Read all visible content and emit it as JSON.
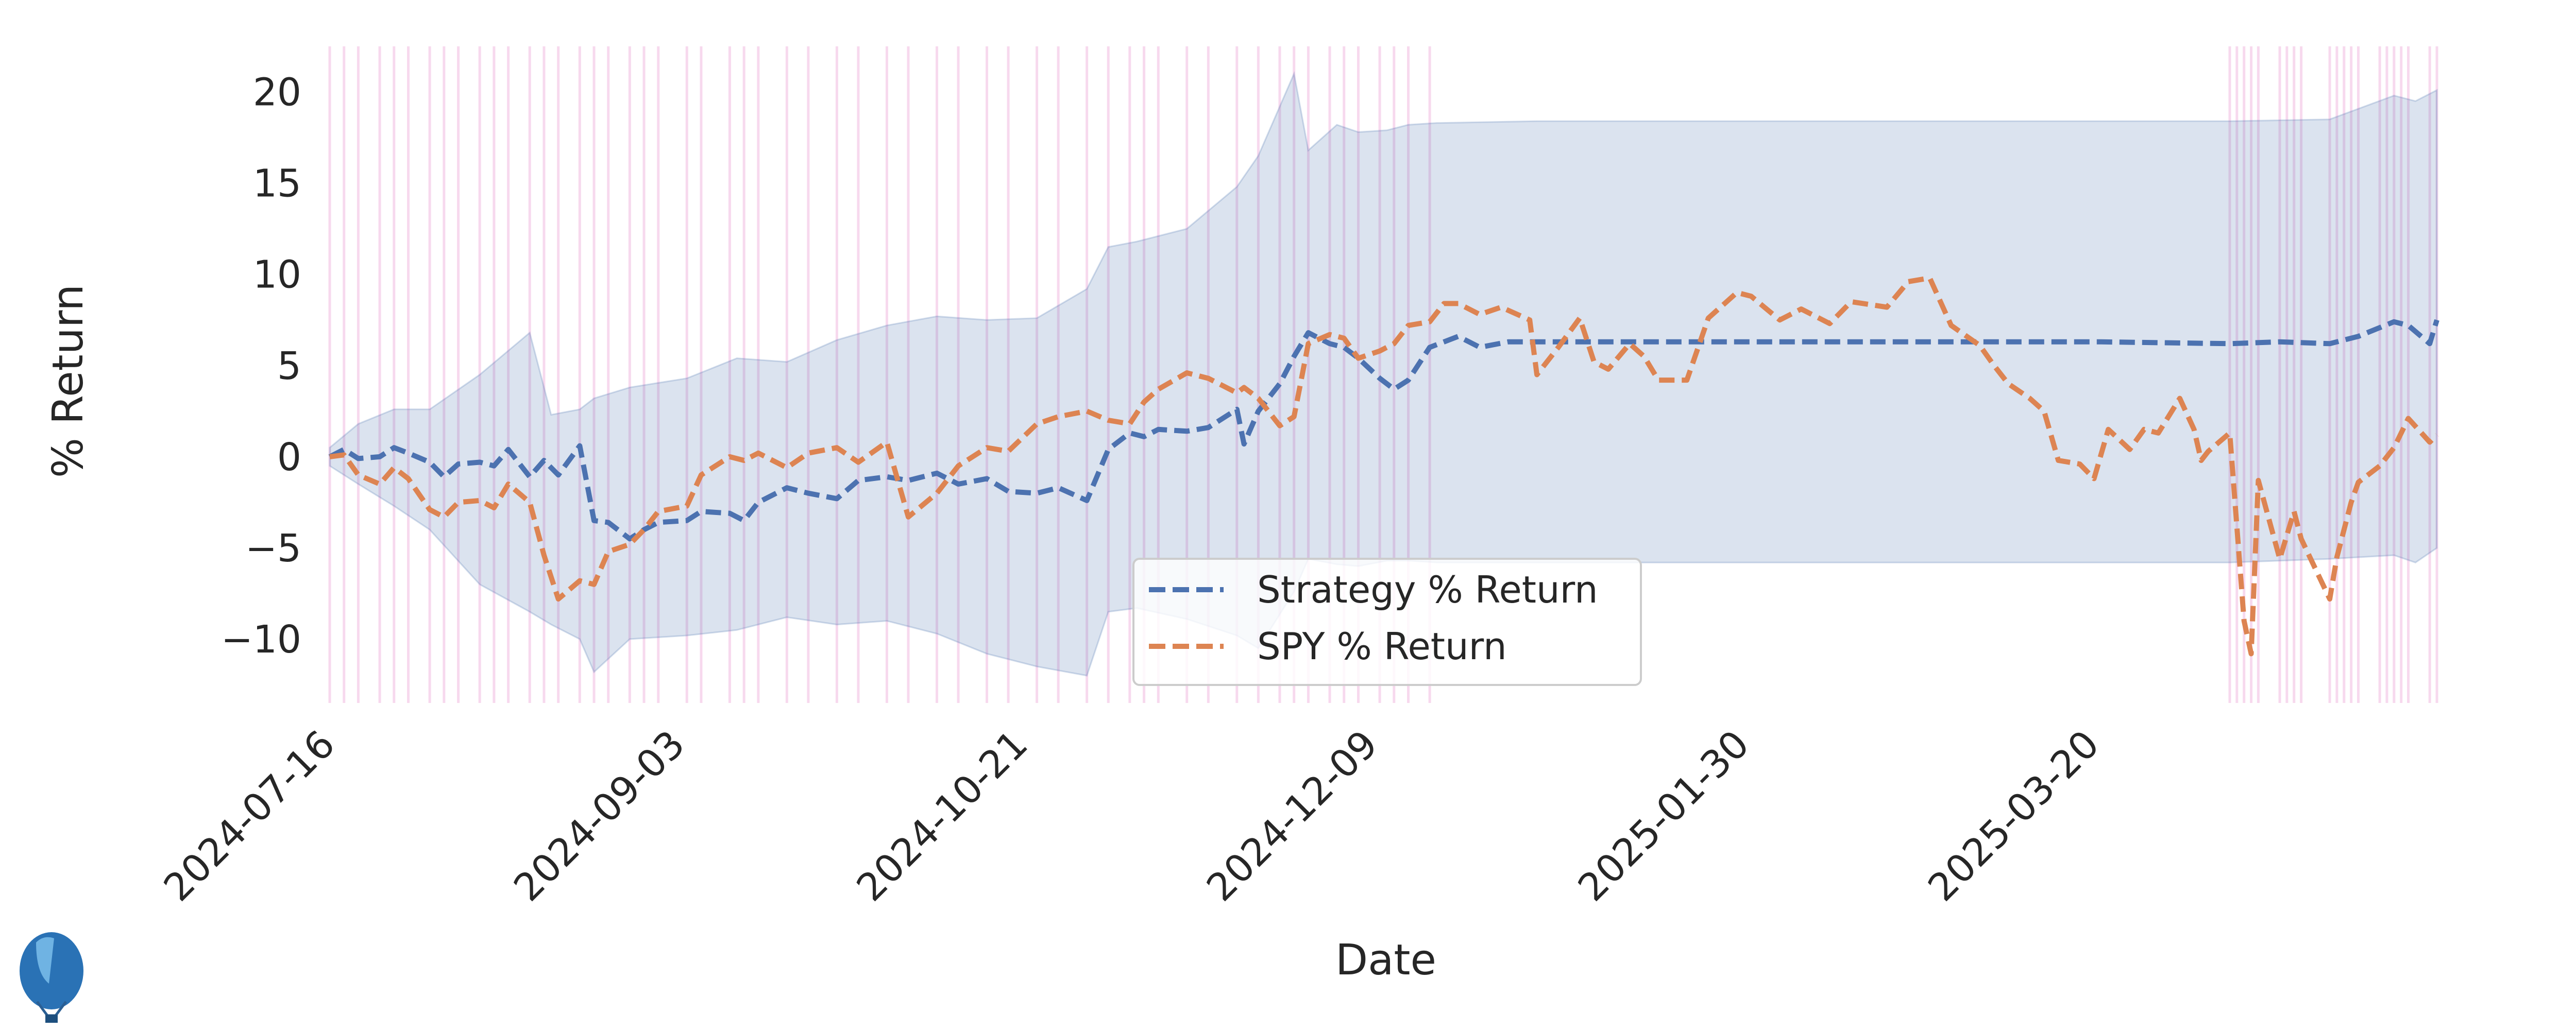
{
  "chart_data": {
    "type": "line",
    "title": "",
    "xlabel": "Date",
    "ylabel": "% Return",
    "x_ticks": [
      "2024-07-16",
      "2024-09-03",
      "2024-10-21",
      "2024-12-09",
      "2025-01-30",
      "2025-03-20"
    ],
    "y_ticks": [
      20,
      15,
      10,
      5,
      0,
      -5,
      -10
    ],
    "xlim": [
      "2024-07-15",
      "2025-05-06"
    ],
    "ylim": [
      -13.5,
      22.5
    ],
    "grid": false,
    "legend_position": "lower center",
    "legend": [
      "Strategy % Return",
      "SPY % Return"
    ],
    "colors": {
      "strategy": "#4c72b0",
      "spy": "#dd8452",
      "band": "#4c72b0",
      "vlines": "#e377c2"
    },
    "series": [
      {
        "name": "Strategy % Return",
        "points": [
          [
            "2024-07-15",
            0
          ],
          [
            "2024-07-17",
            0.4
          ],
          [
            "2024-07-19",
            -0.1
          ],
          [
            "2024-07-22",
            0
          ],
          [
            "2024-07-24",
            0.5
          ],
          [
            "2024-07-26",
            0.2
          ],
          [
            "2024-07-29",
            -0.3
          ],
          [
            "2024-07-31",
            -1.1
          ],
          [
            "2024-08-02",
            -0.4
          ],
          [
            "2024-08-05",
            -0.3
          ],
          [
            "2024-08-07",
            -0.5
          ],
          [
            "2024-08-09",
            0.4
          ],
          [
            "2024-08-12",
            -1.1
          ],
          [
            "2024-08-14",
            -0.2
          ],
          [
            "2024-08-16",
            -1
          ],
          [
            "2024-08-19",
            0.6
          ],
          [
            "2024-08-21",
            -3.5
          ],
          [
            "2024-08-23",
            -3.6
          ],
          [
            "2024-08-26",
            -4.5
          ],
          [
            "2024-08-28",
            -4
          ],
          [
            "2024-08-30",
            -3.6
          ],
          [
            "2024-09-03",
            -3.5
          ],
          [
            "2024-09-05",
            -3
          ],
          [
            "2024-09-09",
            -3.1
          ],
          [
            "2024-09-11",
            -3.5
          ],
          [
            "2024-09-13",
            -2.5
          ],
          [
            "2024-09-17",
            -1.7
          ],
          [
            "2024-09-20",
            -2
          ],
          [
            "2024-09-24",
            -2.3
          ],
          [
            "2024-09-27",
            -1.3
          ],
          [
            "2024-10-01",
            -1.1
          ],
          [
            "2024-10-04",
            -1.3
          ],
          [
            "2024-10-08",
            -0.9
          ],
          [
            "2024-10-11",
            -1.5
          ],
          [
            "2024-10-15",
            -1.2
          ],
          [
            "2024-10-18",
            -1.9
          ],
          [
            "2024-10-22",
            -2
          ],
          [
            "2024-10-25",
            -1.7
          ],
          [
            "2024-10-29",
            -2.4
          ],
          [
            "2024-11-01",
            0.4
          ],
          [
            "2024-11-04",
            1.3
          ],
          [
            "2024-11-06",
            1.1
          ],
          [
            "2024-11-08",
            1.5
          ],
          [
            "2024-11-12",
            1.4
          ],
          [
            "2024-11-15",
            1.6
          ],
          [
            "2024-11-19",
            2.6
          ],
          [
            "2024-11-20",
            0.7
          ],
          [
            "2024-11-22",
            2.5
          ],
          [
            "2024-11-25",
            4
          ],
          [
            "2024-11-27",
            5.5
          ],
          [
            "2024-11-29",
            6.8
          ],
          [
            "2024-12-02",
            6.2
          ],
          [
            "2024-12-04",
            6
          ],
          [
            "2024-12-06",
            5.4
          ],
          [
            "2024-12-09",
            4.3
          ],
          [
            "2024-12-11",
            3.7
          ],
          [
            "2024-12-13",
            4.2
          ],
          [
            "2024-12-16",
            6
          ],
          [
            "2024-12-18",
            6.3
          ],
          [
            "2024-12-20",
            6.6
          ],
          [
            "2024-12-23",
            6
          ],
          [
            "2024-12-27",
            6.3
          ],
          [
            "2024-12-31",
            6.3
          ],
          [
            "2025-03-20",
            6.3
          ],
          [
            "2025-04-07",
            6.2
          ],
          [
            "2025-04-14",
            6.3
          ],
          [
            "2025-04-21",
            6.2
          ],
          [
            "2025-04-25",
            6.6
          ],
          [
            "2025-04-30",
            7.4
          ],
          [
            "2025-05-02",
            7.2
          ],
          [
            "2025-05-05",
            6.2
          ],
          [
            "2025-05-06",
            7.5
          ]
        ]
      },
      {
        "name": "SPY % Return",
        "points": [
          [
            "2024-07-15",
            0
          ],
          [
            "2024-07-17",
            0.1
          ],
          [
            "2024-07-19",
            -1
          ],
          [
            "2024-07-22",
            -1.5
          ],
          [
            "2024-07-24",
            -0.6
          ],
          [
            "2024-07-26",
            -1.2
          ],
          [
            "2024-07-29",
            -2.9
          ],
          [
            "2024-07-31",
            -3.3
          ],
          [
            "2024-08-02",
            -2.5
          ],
          [
            "2024-08-05",
            -2.4
          ],
          [
            "2024-08-07",
            -2.8
          ],
          [
            "2024-08-09",
            -1.5
          ],
          [
            "2024-08-12",
            -2.5
          ],
          [
            "2024-08-14",
            -5.4
          ],
          [
            "2024-08-16",
            -7.8
          ],
          [
            "2024-08-19",
            -6.8
          ],
          [
            "2024-08-21",
            -7
          ],
          [
            "2024-08-23",
            -5.2
          ],
          [
            "2024-08-26",
            -4.8
          ],
          [
            "2024-08-28",
            -4
          ],
          [
            "2024-08-30",
            -3
          ],
          [
            "2024-09-03",
            -2.7
          ],
          [
            "2024-09-05",
            -1
          ],
          [
            "2024-09-09",
            0
          ],
          [
            "2024-09-11",
            -0.2
          ],
          [
            "2024-09-13",
            0.2
          ],
          [
            "2024-09-17",
            -0.6
          ],
          [
            "2024-09-20",
            0.2
          ],
          [
            "2024-09-24",
            0.5
          ],
          [
            "2024-09-27",
            -0.3
          ],
          [
            "2024-10-01",
            0.8
          ],
          [
            "2024-10-04",
            -3.3
          ],
          [
            "2024-10-08",
            -2
          ],
          [
            "2024-10-11",
            -0.5
          ],
          [
            "2024-10-15",
            0.5
          ],
          [
            "2024-10-18",
            0.3
          ],
          [
            "2024-10-22",
            1.8
          ],
          [
            "2024-10-25",
            2.2
          ],
          [
            "2024-10-29",
            2.5
          ],
          [
            "2024-11-01",
            2
          ],
          [
            "2024-11-04",
            1.8
          ],
          [
            "2024-11-06",
            3
          ],
          [
            "2024-11-08",
            3.7
          ],
          [
            "2024-11-12",
            4.6
          ],
          [
            "2024-11-15",
            4.3
          ],
          [
            "2024-11-19",
            3.5
          ],
          [
            "2024-11-20",
            3.8
          ],
          [
            "2024-11-22",
            3.2
          ],
          [
            "2024-11-25",
            1.7
          ],
          [
            "2024-11-27",
            2.2
          ],
          [
            "2024-11-29",
            6.2
          ],
          [
            "2024-12-02",
            6.7
          ],
          [
            "2024-12-04",
            6.5
          ],
          [
            "2024-12-06",
            5.4
          ],
          [
            "2024-12-09",
            5.8
          ],
          [
            "2024-12-11",
            6.2
          ],
          [
            "2024-12-13",
            7.2
          ],
          [
            "2024-12-16",
            7.4
          ],
          [
            "2024-12-18",
            8.4
          ],
          [
            "2024-12-20",
            8.4
          ],
          [
            "2024-12-23",
            7.8
          ],
          [
            "2024-12-26",
            8.2
          ],
          [
            "2024-12-30",
            7.5
          ],
          [
            "2024-12-31",
            4.5
          ],
          [
            "2025-01-03",
            6
          ],
          [
            "2025-01-06",
            7.6
          ],
          [
            "2025-01-08",
            5.2
          ],
          [
            "2025-01-10",
            4.8
          ],
          [
            "2025-01-13",
            6.2
          ],
          [
            "2025-01-15",
            5.5
          ],
          [
            "2025-01-17",
            4.2
          ],
          [
            "2025-01-21",
            4.2
          ],
          [
            "2025-01-24",
            7.6
          ],
          [
            "2025-01-28",
            9
          ],
          [
            "2025-01-30",
            8.8
          ],
          [
            "2025-02-03",
            7.5
          ],
          [
            "2025-02-06",
            8.1
          ],
          [
            "2025-02-10",
            7.3
          ],
          [
            "2025-02-13",
            8.5
          ],
          [
            "2025-02-18",
            8.2
          ],
          [
            "2025-02-21",
            9.6
          ],
          [
            "2025-02-24",
            9.8
          ],
          [
            "2025-02-27",
            7.2
          ],
          [
            "2025-03-03",
            6.1
          ],
          [
            "2025-03-05",
            5
          ],
          [
            "2025-03-07",
            4
          ],
          [
            "2025-03-10",
            3.2
          ],
          [
            "2025-03-12",
            2.5
          ],
          [
            "2025-03-14",
            -0.2
          ],
          [
            "2025-03-17",
            -0.4
          ],
          [
            "2025-03-19",
            -1.2
          ],
          [
            "2025-03-21",
            1.5
          ],
          [
            "2025-03-24",
            0.4
          ],
          [
            "2025-03-26",
            1.5
          ],
          [
            "2025-03-28",
            1.3
          ],
          [
            "2025-03-31",
            3.2
          ],
          [
            "2025-04-02",
            1.5
          ],
          [
            "2025-04-03",
            -0.2
          ],
          [
            "2025-04-04",
            0.3
          ],
          [
            "2025-04-07",
            1.3
          ],
          [
            "2025-04-09",
            -9
          ],
          [
            "2025-04-10",
            -10.8
          ],
          [
            "2025-04-11",
            -1.3
          ],
          [
            "2025-04-14",
            -5.6
          ],
          [
            "2025-04-16",
            -3
          ],
          [
            "2025-04-17",
            -4.5
          ],
          [
            "2025-04-21",
            -7.8
          ],
          [
            "2025-04-22",
            -5.5
          ],
          [
            "2025-04-24",
            -2.5
          ],
          [
            "2025-04-25",
            -1.4
          ],
          [
            "2025-04-28",
            -0.5
          ],
          [
            "2025-04-30",
            0.5
          ],
          [
            "2025-05-02",
            2.1
          ],
          [
            "2025-05-05",
            0.8
          ],
          [
            "2025-05-06",
            1.2
          ]
        ]
      }
    ],
    "band": {
      "dates": [
        "2024-07-15",
        "2024-07-19",
        "2024-07-24",
        "2024-07-29",
        "2024-08-05",
        "2024-08-12",
        "2024-08-15",
        "2024-08-19",
        "2024-08-21",
        "2024-08-26",
        "2024-09-03",
        "2024-09-10",
        "2024-09-17",
        "2024-09-24",
        "2024-10-01",
        "2024-10-08",
        "2024-10-15",
        "2024-10-22",
        "2024-10-29",
        "2024-11-01",
        "2024-11-05",
        "2024-11-12",
        "2024-11-19",
        "2024-11-22",
        "2024-11-27",
        "2024-11-29",
        "2024-12-03",
        "2024-12-06",
        "2024-12-10",
        "2024-12-13",
        "2024-12-17",
        "2024-12-31",
        "2025-04-07",
        "2025-04-21",
        "2025-04-30",
        "2025-05-03",
        "2025-05-06"
      ],
      "upper": [
        0.5,
        1.8,
        2.6,
        2.6,
        4.5,
        6.8,
        2.3,
        2.6,
        3.2,
        3.8,
        4.3,
        5.4,
        5.2,
        6.4,
        7.2,
        7.7,
        7.5,
        7.6,
        9.2,
        11.5,
        11.8,
        12.5,
        14.8,
        16.5,
        21,
        16.8,
        18.2,
        17.8,
        17.9,
        18.2,
        18.3,
        18.4,
        18.4,
        18.5,
        19.8,
        19.5,
        20.1
      ],
      "lower": [
        -0.5,
        -1.5,
        -2.7,
        -4,
        -7,
        -8.5,
        -9.2,
        -10,
        -11.8,
        -10,
        -9.8,
        -9.5,
        -8.8,
        -9.2,
        -9,
        -9.7,
        -10.8,
        -11.5,
        -12,
        -8.5,
        -8.3,
        -8.9,
        -9.8,
        -10.5,
        -7.4,
        -5.6,
        -5.9,
        -6,
        -5.7,
        -5.7,
        -5.8,
        -5.8,
        -5.8,
        -5.6,
        -5.4,
        -5.8,
        -5
      ]
    },
    "shaded_dates": [
      "2024-07-15",
      "2024-07-17",
      "2024-07-19",
      "2024-07-22",
      "2024-07-24",
      "2024-07-26",
      "2024-07-29",
      "2024-07-31",
      "2024-08-02",
      "2024-08-05",
      "2024-08-07",
      "2024-08-09",
      "2024-08-12",
      "2024-08-14",
      "2024-08-16",
      "2024-08-19",
      "2024-08-21",
      "2024-08-23",
      "2024-08-26",
      "2024-08-28",
      "2024-08-30",
      "2024-09-03",
      "2024-09-05",
      "2024-09-09",
      "2024-09-11",
      "2024-09-13",
      "2024-09-17",
      "2024-09-20",
      "2024-09-24",
      "2024-09-27",
      "2024-10-01",
      "2024-10-04",
      "2024-10-08",
      "2024-10-11",
      "2024-10-15",
      "2024-10-18",
      "2024-10-22",
      "2024-10-25",
      "2024-10-29",
      "2024-11-01",
      "2024-11-04",
      "2024-11-06",
      "2024-11-08",
      "2024-11-12",
      "2024-11-15",
      "2024-11-19",
      "2024-11-22",
      "2024-11-25",
      "2024-11-27",
      "2024-11-29",
      "2024-12-02",
      "2024-12-04",
      "2024-12-06",
      "2024-12-09",
      "2024-12-11",
      "2024-12-13",
      "2024-12-16",
      "2025-04-07",
      "2025-04-08",
      "2025-04-09",
      "2025-04-10",
      "2025-04-11",
      "2025-04-14",
      "2025-04-15",
      "2025-04-16",
      "2025-04-17",
      "2025-04-21",
      "2025-04-22",
      "2025-04-23",
      "2025-04-24",
      "2025-04-25",
      "2025-04-28",
      "2025-04-29",
      "2025-04-30",
      "2025-05-01",
      "2025-05-02",
      "2025-05-05",
      "2025-05-06"
    ]
  }
}
